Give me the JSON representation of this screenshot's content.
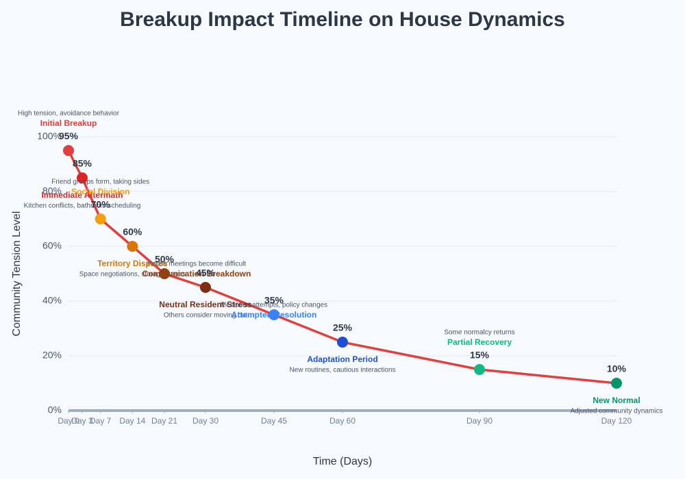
{
  "chart_data": {
    "type": "line",
    "title": "Breakup Impact Timeline on House Dynamics",
    "x_label": "Time (Days)",
    "y_label": "Community Tension Level",
    "x": [
      0,
      3,
      7,
      14,
      21,
      30,
      45,
      60,
      90,
      120
    ],
    "xlim": [
      0,
      120
    ],
    "xticks": [
      {
        "value": 0,
        "label": "Day 0"
      },
      {
        "value": 3,
        "label": "Day 3"
      },
      {
        "value": 7,
        "label": "Day 7"
      },
      {
        "value": 14,
        "label": "Day 14"
      },
      {
        "value": 21,
        "label": "Day 21"
      },
      {
        "value": 30,
        "label": "Day 30"
      },
      {
        "value": 45,
        "label": "Day 45"
      },
      {
        "value": 60,
        "label": "Day 60"
      },
      {
        "value": 90,
        "label": "Day 90"
      },
      {
        "value": 120,
        "label": "Day 120"
      }
    ],
    "ylim": [
      0,
      100
    ],
    "yticks": [
      {
        "value": 0,
        "label": "0%"
      },
      {
        "value": 20,
        "label": "20%"
      },
      {
        "value": 40,
        "label": "40%"
      },
      {
        "value": 60,
        "label": "60%"
      },
      {
        "value": 80,
        "label": "80%"
      },
      {
        "value": 100,
        "label": "100%"
      }
    ],
    "grid": true,
    "line_color": "#e53e3e",
    "values": [
      95,
      85,
      70,
      60,
      50,
      45,
      35,
      25,
      15,
      10
    ],
    "value_labels": [
      "95%",
      "85%",
      "70%",
      "60%",
      "50%",
      "45%",
      "35%",
      "25%",
      "15%",
      "10%"
    ],
    "point_colors": [
      "#e53e3e",
      "#dc2626",
      "#f59e0b",
      "#d97706",
      "#92400e",
      "#7c2d12",
      "#3b82f6",
      "#1d4ed8",
      "#10b981",
      "#059669"
    ],
    "phases": [
      "Initial Breakup",
      "Immediate Aftermath",
      "Social Division",
      "Territory Disputes",
      "Communication Breakdown",
      "Neutral Resident Stress",
      "Attempted Resolution",
      "Adaptation Period",
      "Partial Recovery",
      "New Normal"
    ],
    "descriptions": [
      "High tension, avoidance behavior",
      "Kitchen conflicts, bathroom scheduling",
      "Friend groups form, taking sides",
      "Space negotiations, storage issues",
      "House meetings become difficult",
      "Others consider moving out",
      "Mediation attempts, policy changes",
      "New routines, cautious interactions",
      "Some normalcy returns",
      "Adjusted community dynamics"
    ]
  }
}
